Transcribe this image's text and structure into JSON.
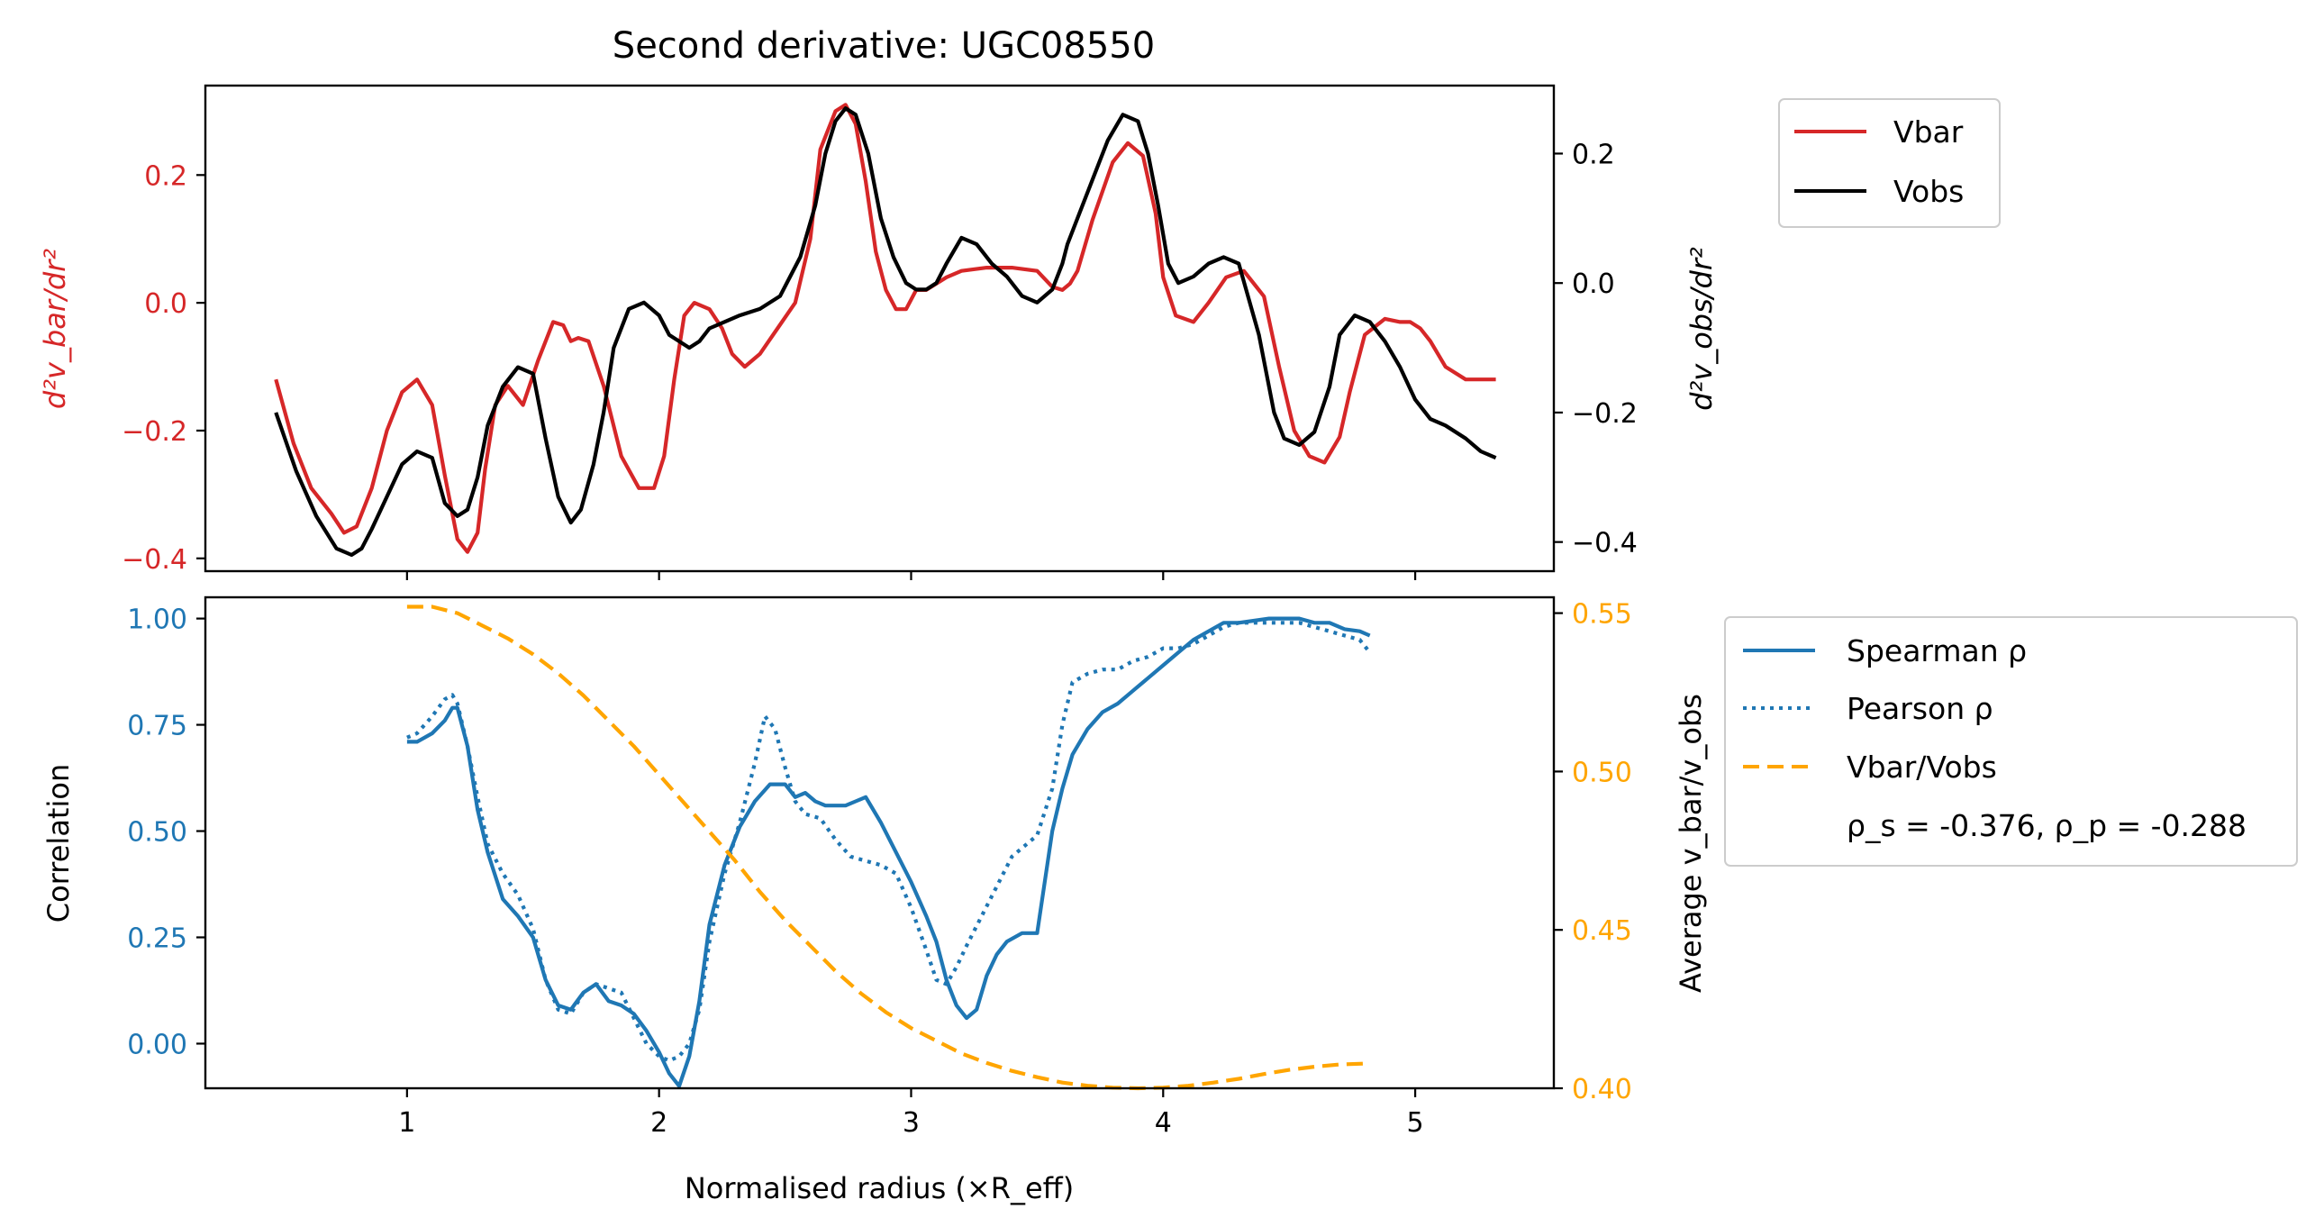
{
  "chart_data": [
    {
      "type": "line",
      "title": "Second derivative: UGC08550",
      "ylabel_left": "d²v_bar/dr²",
      "ylabel_right": "d²v_obs/dr²",
      "ylim_left": [
        -0.42,
        0.34
      ],
      "ylim_right": [
        -0.445,
        0.305
      ],
      "xlim": [
        0.2,
        5.55
      ],
      "yticks_left": [
        -0.4,
        -0.2,
        0.0,
        0.2
      ],
      "yticks_right": [
        -0.4,
        -0.2,
        0.0,
        0.2
      ],
      "ytick_labels_left": [
        "−0.4",
        "−0.2",
        "0.0",
        "0.2"
      ],
      "ytick_labels_right": [
        "−0.4",
        "−0.2",
        "0.0",
        "0.2"
      ],
      "legend_loc": "upper right, outside",
      "colors": {
        "vbar": "#d62728",
        "vobs": "#000000",
        "left_axis": "#d62728",
        "right_axis": "#000000"
      },
      "series": [
        {
          "name": "Vbar",
          "axis": "left",
          "x": [
            0.48,
            0.55,
            0.62,
            0.7,
            0.75,
            0.8,
            0.86,
            0.92,
            0.98,
            1.04,
            1.1,
            1.15,
            1.2,
            1.24,
            1.28,
            1.31,
            1.35,
            1.4,
            1.46,
            1.52,
            1.58,
            1.62,
            1.65,
            1.68,
            1.72,
            1.78,
            1.85,
            1.92,
            1.98,
            2.02,
            2.06,
            2.1,
            2.14,
            2.2,
            2.25,
            2.29,
            2.34,
            2.4,
            2.47,
            2.54,
            2.6,
            2.64,
            2.7,
            2.74,
            2.78,
            2.82,
            2.86,
            2.9,
            2.94,
            2.98,
            3.02,
            3.06,
            3.1,
            3.14,
            3.2,
            3.3,
            3.4,
            3.5,
            3.56,
            3.6,
            3.63,
            3.66,
            3.72,
            3.8,
            3.86,
            3.92,
            3.97,
            4.0,
            4.05,
            4.12,
            4.18,
            4.25,
            4.32,
            4.4,
            4.46,
            4.52,
            4.58,
            4.64,
            4.7,
            4.74,
            4.8,
            4.88,
            4.94,
            4.98,
            5.02,
            5.06,
            5.12,
            5.2,
            5.26,
            5.32
          ],
          "y": [
            -0.12,
            -0.22,
            -0.29,
            -0.33,
            -0.36,
            -0.35,
            -0.29,
            -0.2,
            -0.14,
            -0.12,
            -0.16,
            -0.27,
            -0.37,
            -0.39,
            -0.36,
            -0.26,
            -0.16,
            -0.13,
            -0.16,
            -0.09,
            -0.03,
            -0.035,
            -0.06,
            -0.055,
            -0.06,
            -0.13,
            -0.24,
            -0.29,
            -0.29,
            -0.24,
            -0.12,
            -0.02,
            0.0,
            -0.01,
            -0.04,
            -0.08,
            -0.1,
            -0.08,
            -0.04,
            0.0,
            0.1,
            0.24,
            0.3,
            0.31,
            0.28,
            0.19,
            0.08,
            0.02,
            -0.01,
            -0.01,
            0.02,
            0.02,
            0.03,
            0.04,
            0.05,
            0.055,
            0.055,
            0.05,
            0.025,
            0.02,
            0.03,
            0.05,
            0.13,
            0.22,
            0.25,
            0.23,
            0.14,
            0.04,
            -0.02,
            -0.03,
            0.0,
            0.04,
            0.05,
            0.01,
            -0.1,
            -0.2,
            -0.24,
            -0.25,
            -0.21,
            -0.14,
            -0.05,
            -0.025,
            -0.03,
            -0.03,
            -0.04,
            -0.06,
            -0.1,
            -0.12,
            -0.12,
            -0.12
          ]
        },
        {
          "name": "Vobs",
          "axis": "right",
          "x": [
            0.48,
            0.56,
            0.64,
            0.72,
            0.78,
            0.82,
            0.86,
            0.92,
            0.98,
            1.04,
            1.1,
            1.15,
            1.2,
            1.24,
            1.28,
            1.32,
            1.38,
            1.44,
            1.5,
            1.55,
            1.6,
            1.65,
            1.69,
            1.74,
            1.78,
            1.82,
            1.88,
            1.94,
            2.0,
            2.04,
            2.08,
            2.12,
            2.16,
            2.2,
            2.26,
            2.32,
            2.4,
            2.48,
            2.56,
            2.62,
            2.66,
            2.7,
            2.74,
            2.78,
            2.83,
            2.88,
            2.93,
            2.98,
            3.02,
            3.06,
            3.1,
            3.14,
            3.2,
            3.26,
            3.32,
            3.38,
            3.44,
            3.5,
            3.56,
            3.6,
            3.62,
            3.66,
            3.72,
            3.78,
            3.84,
            3.9,
            3.94,
            3.98,
            4.02,
            4.06,
            4.12,
            4.18,
            4.24,
            4.3,
            4.38,
            4.44,
            4.48,
            4.54,
            4.6,
            4.66,
            4.7,
            4.76,
            4.82,
            4.88,
            4.94,
            5.0,
            5.06,
            5.12,
            5.2,
            5.26,
            5.32
          ],
          "y": [
            -0.2,
            -0.29,
            -0.36,
            -0.41,
            -0.42,
            -0.41,
            -0.38,
            -0.33,
            -0.28,
            -0.26,
            -0.27,
            -0.34,
            -0.36,
            -0.35,
            -0.3,
            -0.22,
            -0.16,
            -0.13,
            -0.14,
            -0.24,
            -0.33,
            -0.37,
            -0.35,
            -0.28,
            -0.2,
            -0.1,
            -0.04,
            -0.03,
            -0.05,
            -0.08,
            -0.09,
            -0.1,
            -0.09,
            -0.07,
            -0.06,
            -0.05,
            -0.04,
            -0.02,
            0.04,
            0.12,
            0.2,
            0.25,
            0.27,
            0.26,
            0.2,
            0.1,
            0.04,
            0.0,
            -0.01,
            -0.01,
            0.0,
            0.03,
            0.07,
            0.06,
            0.03,
            0.01,
            -0.02,
            -0.03,
            -0.01,
            0.03,
            0.06,
            0.1,
            0.16,
            0.22,
            0.26,
            0.25,
            0.2,
            0.12,
            0.03,
            0.0,
            0.01,
            0.03,
            0.04,
            0.03,
            -0.08,
            -0.2,
            -0.24,
            -0.25,
            -0.23,
            -0.16,
            -0.08,
            -0.05,
            -0.06,
            -0.09,
            -0.13,
            -0.18,
            -0.21,
            -0.22,
            -0.24,
            -0.26,
            -0.27
          ]
        }
      ]
    },
    {
      "type": "line",
      "xlabel": "Normalised radius (×R_eff)",
      "ylabel_left": "Correlation",
      "ylabel_right": "Average v_bar/v_obs",
      "ylim_left": [
        -0.105,
        1.05
      ],
      "ylim_right": [
        0.4,
        0.555
      ],
      "xlim": [
        0.2,
        5.55
      ],
      "xticks": [
        1,
        2,
        3,
        4,
        5
      ],
      "yticks_left": [
        0.0,
        0.25,
        0.5,
        0.75,
        1.0
      ],
      "ytick_labels_left": [
        "0.00",
        "0.25",
        "0.50",
        "0.75",
        "1.00"
      ],
      "yticks_right": [
        0.4,
        0.45,
        0.5,
        0.55
      ],
      "ytick_labels_right": [
        "0.40",
        "0.45",
        "0.50",
        "0.55"
      ],
      "legend_loc": "center right, outside",
      "legend_note": "ρ_s = -0.376, ρ_p = -0.288",
      "colors": {
        "spearman": "#1f77b4",
        "pearson": "#1f77b4",
        "ratio": "#ffa500",
        "left_axis": "#1f77b4",
        "right_axis": "#ffa500"
      },
      "series": [
        {
          "name": "Spearman ρ",
          "axis": "left",
          "style": "solid",
          "x": [
            1.0,
            1.04,
            1.1,
            1.15,
            1.18,
            1.2,
            1.24,
            1.28,
            1.32,
            1.38,
            1.44,
            1.5,
            1.55,
            1.6,
            1.65,
            1.7,
            1.75,
            1.8,
            1.85,
            1.9,
            1.95,
            2.0,
            2.04,
            2.08,
            2.12,
            2.16,
            2.2,
            2.26,
            2.32,
            2.38,
            2.44,
            2.5,
            2.54,
            2.58,
            2.62,
            2.66,
            2.7,
            2.74,
            2.78,
            2.82,
            2.88,
            2.94,
            3.0,
            3.06,
            3.1,
            3.14,
            3.18,
            3.22,
            3.26,
            3.3,
            3.34,
            3.38,
            3.44,
            3.5,
            3.56,
            3.6,
            3.64,
            3.7,
            3.76,
            3.82,
            3.88,
            3.94,
            4.0,
            4.06,
            4.12,
            4.18,
            4.24,
            4.3,
            4.36,
            4.42,
            4.48,
            4.54,
            4.6,
            4.66,
            4.72,
            4.78,
            4.82
          ],
          "y": [
            0.71,
            0.71,
            0.73,
            0.76,
            0.79,
            0.79,
            0.7,
            0.55,
            0.45,
            0.34,
            0.3,
            0.25,
            0.15,
            0.09,
            0.08,
            0.12,
            0.14,
            0.1,
            0.09,
            0.07,
            0.03,
            -0.02,
            -0.07,
            -0.1,
            -0.03,
            0.1,
            0.28,
            0.42,
            0.51,
            0.57,
            0.61,
            0.61,
            0.58,
            0.59,
            0.57,
            0.56,
            0.56,
            0.56,
            0.57,
            0.58,
            0.52,
            0.45,
            0.38,
            0.3,
            0.24,
            0.15,
            0.09,
            0.06,
            0.08,
            0.16,
            0.21,
            0.24,
            0.26,
            0.26,
            0.5,
            0.6,
            0.68,
            0.74,
            0.78,
            0.8,
            0.83,
            0.86,
            0.89,
            0.92,
            0.95,
            0.97,
            0.99,
            0.99,
            0.995,
            1.0,
            1.0,
            1.0,
            0.99,
            0.99,
            0.975,
            0.97,
            0.96
          ]
        },
        {
          "name": "Pearson ρ",
          "axis": "left",
          "style": "dotted",
          "x": [
            1.0,
            1.04,
            1.1,
            1.15,
            1.18,
            1.2,
            1.24,
            1.28,
            1.32,
            1.38,
            1.44,
            1.5,
            1.55,
            1.6,
            1.65,
            1.7,
            1.75,
            1.8,
            1.85,
            1.9,
            1.95,
            2.0,
            2.04,
            2.08,
            2.12,
            2.16,
            2.2,
            2.26,
            2.32,
            2.38,
            2.42,
            2.46,
            2.5,
            2.54,
            2.58,
            2.64,
            2.7,
            2.76,
            2.82,
            2.88,
            2.94,
            3.0,
            3.06,
            3.1,
            3.14,
            3.18,
            3.22,
            3.28,
            3.34,
            3.4,
            3.46,
            3.5,
            3.56,
            3.6,
            3.64,
            3.7,
            3.76,
            3.82,
            3.88,
            3.94,
            4.0,
            4.06,
            4.12,
            4.18,
            4.24,
            4.3,
            4.36,
            4.42,
            4.48,
            4.54,
            4.6,
            4.66,
            4.72,
            4.78,
            4.82
          ],
          "y": [
            0.72,
            0.73,
            0.77,
            0.81,
            0.82,
            0.8,
            0.7,
            0.58,
            0.47,
            0.4,
            0.35,
            0.27,
            0.15,
            0.08,
            0.07,
            0.12,
            0.14,
            0.13,
            0.12,
            0.06,
            0.0,
            -0.03,
            -0.04,
            -0.03,
            0.0,
            0.08,
            0.24,
            0.4,
            0.52,
            0.66,
            0.77,
            0.74,
            0.65,
            0.57,
            0.54,
            0.53,
            0.48,
            0.44,
            0.43,
            0.42,
            0.4,
            0.32,
            0.22,
            0.15,
            0.14,
            0.18,
            0.23,
            0.3,
            0.37,
            0.44,
            0.47,
            0.49,
            0.6,
            0.75,
            0.85,
            0.87,
            0.88,
            0.88,
            0.9,
            0.91,
            0.93,
            0.93,
            0.94,
            0.96,
            0.98,
            0.99,
            0.99,
            0.99,
            0.99,
            0.99,
            0.98,
            0.97,
            0.96,
            0.95,
            0.92
          ]
        },
        {
          "name": "Vbar/Vobs",
          "axis": "right",
          "style": "dashed",
          "x": [
            1.0,
            1.1,
            1.2,
            1.3,
            1.4,
            1.5,
            1.6,
            1.7,
            1.8,
            1.9,
            2.0,
            2.1,
            2.2,
            2.3,
            2.4,
            2.5,
            2.6,
            2.7,
            2.8,
            2.9,
            3.0,
            3.1,
            3.2,
            3.3,
            3.4,
            3.5,
            3.6,
            3.7,
            3.8,
            3.9,
            4.0,
            4.1,
            4.2,
            4.3,
            4.4,
            4.5,
            4.6,
            4.7,
            4.8
          ],
          "y": [
            0.552,
            0.552,
            0.55,
            0.546,
            0.542,
            0.537,
            0.531,
            0.524,
            0.516,
            0.508,
            0.499,
            0.49,
            0.481,
            0.472,
            0.462,
            0.453,
            0.445,
            0.437,
            0.43,
            0.424,
            0.419,
            0.415,
            0.411,
            0.408,
            0.4055,
            0.4035,
            0.4018,
            0.4008,
            0.4002,
            0.4,
            0.4002,
            0.4008,
            0.4018,
            0.403,
            0.4045,
            0.4058,
            0.4068,
            0.4075,
            0.4078
          ]
        }
      ]
    }
  ]
}
